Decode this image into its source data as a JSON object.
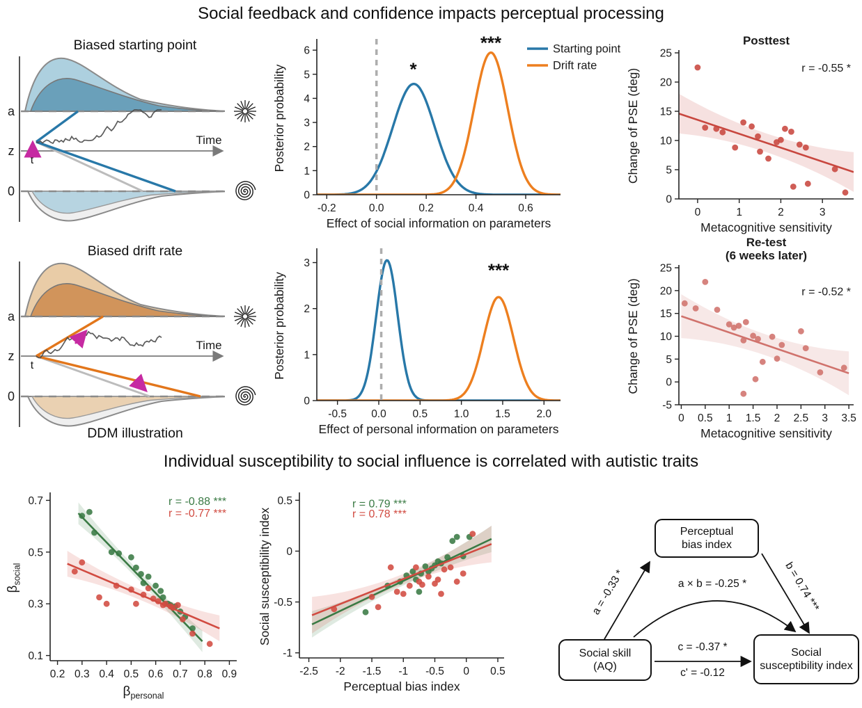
{
  "figure": {
    "title_top": "Social feedback and confidence impacts perceptual processing",
    "title_bottom": "Individual susceptibility to social influence is correlated with autistic traits"
  },
  "ddm": {
    "panel1_title": "Biased starting point",
    "panel2_title": "Biased drift rate",
    "caption": "DDM illustration",
    "labels": {
      "upper": "a",
      "mid": "z",
      "lower": "0",
      "start": "t",
      "time": "Time"
    },
    "colors": {
      "panel1_accent": "#2878a8",
      "panel1_fill_light": "#a9cddd",
      "panel1_fill_dark": "#5e98b4",
      "panel2_accent": "#e2761b",
      "panel2_fill_light": "#e8c9a2",
      "panel2_fill_dark": "#cd8a4e",
      "arrow": "#c62aa2",
      "gray": "#8a8a8a"
    }
  },
  "mediation": {
    "node_top": [
      "Perceptual",
      "bias index"
    ],
    "node_left": [
      "Social skill",
      "(AQ)"
    ],
    "node_right": [
      "Social",
      "susceptibility index"
    ],
    "path_a": "a = -0.33 *",
    "path_b": "b = 0.74 ***",
    "path_ab": "a × b = -0.25 *",
    "path_c": "c = -0.37 *",
    "path_cprime": "c' = -0.12"
  },
  "chart_data": [
    {
      "id": "posterior-social",
      "type": "line",
      "xlabel": "Effect of social information on parameters",
      "ylabel": "Posterior probability",
      "xlim": [
        -0.24,
        0.74
      ],
      "ylim": [
        0,
        6.35
      ],
      "xticks": [
        {
          "v": -0.2,
          "l": "-0.2"
        },
        {
          "v": 0,
          "l": "0.0"
        },
        {
          "v": 0.2,
          "l": "0.2"
        },
        {
          "v": 0.4,
          "l": "0.4"
        },
        {
          "v": 0.6,
          "l": "0.6"
        }
      ],
      "yticks": [
        0,
        1,
        2,
        3,
        4,
        5,
        6
      ],
      "vline": 0,
      "series": [
        {
          "name": "Starting point",
          "color": "#2878a8",
          "mean": 0.15,
          "sd": 0.085,
          "peak": 4.6
        },
        {
          "name": "Drift rate",
          "color": "#ed7f1f",
          "mean": 0.46,
          "sd": 0.068,
          "peak": 5.9
        }
      ],
      "annotations": [
        {
          "x": 0.148,
          "y": 4.95,
          "text": "*",
          "size": 26,
          "weight": "bold"
        },
        {
          "x": 0.46,
          "y": 6.05,
          "text": "***",
          "size": 26,
          "weight": "bold"
        }
      ]
    },
    {
      "id": "posterior-personal",
      "type": "line",
      "xlabel": "Effect of personal information on parameters",
      "ylabel": "Posterior probability",
      "xlim": [
        -0.75,
        2.2
      ],
      "ylim": [
        0,
        3.25
      ],
      "xticks": [
        {
          "v": -0.5,
          "l": "-0.5"
        },
        {
          "v": 0,
          "l": "0.0"
        },
        {
          "v": 0.5,
          "l": "0.5"
        },
        {
          "v": 1,
          "l": "1.0"
        },
        {
          "v": 1.5,
          "l": "1.5"
        },
        {
          "v": 2,
          "l": "2.0"
        }
      ],
      "yticks": [
        0,
        1,
        2,
        3
      ],
      "vline": 0.03,
      "series": [
        {
          "name": "Starting point",
          "color": "#2878a8",
          "mean": 0.1,
          "sd": 0.13,
          "peak": 3.05
        },
        {
          "name": "Drift rate",
          "color": "#ed7f1f",
          "mean": 1.45,
          "sd": 0.18,
          "peak": 2.25
        }
      ],
      "annotations": [
        {
          "x": 1.45,
          "y": 2.7,
          "text": "***",
          "size": 26,
          "weight": "bold"
        }
      ]
    },
    {
      "id": "posttest",
      "type": "scatter",
      "title": [
        "Posttest"
      ],
      "r_text": "r = -0.55 *",
      "xlabel": "Metacognitive sensitivity",
      "ylabel": "Change of PSE (deg)",
      "xlim": [
        -0.45,
        3.75
      ],
      "ylim": [
        0,
        25
      ],
      "xticks": [
        0,
        1,
        2,
        3
      ],
      "yticks": [
        0,
        5,
        10,
        15,
        20,
        25
      ],
      "series": [
        {
          "name": "participants",
          "color": "#c8473f",
          "points": [
            [
              0.0,
              22.5
            ],
            [
              0.18,
              12.2
            ],
            [
              0.45,
              12.0
            ],
            [
              0.6,
              11.4
            ],
            [
              0.9,
              8.8
            ],
            [
              1.1,
              13.1
            ],
            [
              1.3,
              12.4
            ],
            [
              1.45,
              10.7
            ],
            [
              1.5,
              8.1
            ],
            [
              1.7,
              6.9
            ],
            [
              1.9,
              9.7
            ],
            [
              2.0,
              10.1
            ],
            [
              2.1,
              12.0
            ],
            [
              2.25,
              11.5
            ],
            [
              2.3,
              2.1
            ],
            [
              2.45,
              9.3
            ],
            [
              2.6,
              8.8
            ],
            [
              2.65,
              2.6
            ],
            [
              3.3,
              5.1
            ],
            [
              3.55,
              1.1
            ]
          ],
          "line": [
            [
              -0.45,
              14.6
            ],
            [
              3.75,
              4.6
            ]
          ],
          "band": {
            "mid": 1.6,
            "end": 3.4
          }
        }
      ]
    },
    {
      "id": "retest",
      "type": "scatter",
      "title": [
        "Re-test",
        "(6 weeks later)"
      ],
      "r_text": "r = -0.52 *",
      "xlabel": "Metacognitive sensitivity",
      "ylabel": "Change of PSE (deg)",
      "xlim": [
        -0.05,
        3.6
      ],
      "ylim": [
        -5,
        25
      ],
      "xticks": [
        0,
        0.5,
        1,
        1.5,
        2,
        2.5,
        3,
        3.5
      ],
      "yticks": [
        -5,
        0,
        5,
        10,
        15,
        20,
        25
      ],
      "series": [
        {
          "name": "participants",
          "color": "#d0726c",
          "points": [
            [
              0.07,
              17.2
            ],
            [
              0.3,
              16.1
            ],
            [
              0.5,
              21.9
            ],
            [
              0.75,
              15.8
            ],
            [
              1.0,
              12.6
            ],
            [
              1.1,
              11.9
            ],
            [
              1.2,
              12.3
            ],
            [
              1.3,
              9.1
            ],
            [
              1.3,
              -2.6
            ],
            [
              1.35,
              13.1
            ],
            [
              1.5,
              10.1
            ],
            [
              1.55,
              0.6
            ],
            [
              1.6,
              9.4
            ],
            [
              1.7,
              4.4
            ],
            [
              1.9,
              9.9
            ],
            [
              2.0,
              5.1
            ],
            [
              2.1,
              8.1
            ],
            [
              2.5,
              11.1
            ],
            [
              2.6,
              7.4
            ],
            [
              2.9,
              2.1
            ],
            [
              3.4,
              3.1
            ]
          ],
          "line": [
            [
              0,
              14.4
            ],
            [
              3.5,
              1.9
            ]
          ],
          "band": {
            "mid": 2.3,
            "end": 4.8
          }
        }
      ]
    },
    {
      "id": "beta",
      "type": "scatter",
      "xlabel": {
        "main": "β",
        "sub": "personal"
      },
      "ylabel": {
        "main": "β",
        "sub": "social"
      },
      "xlim": [
        0.17,
        0.93
      ],
      "ylim": [
        0.08,
        0.72
      ],
      "xticks": [
        0.2,
        0.3,
        0.4,
        0.5,
        0.6,
        0.7,
        0.8,
        0.9
      ],
      "yticks": [
        0.1,
        0.3,
        0.5,
        0.7
      ],
      "series": [
        {
          "name": "social condition",
          "color": "#3a7a44",
          "points": [
            [
              0.3,
              0.64
            ],
            [
              0.33,
              0.655
            ],
            [
              0.35,
              0.575
            ],
            [
              0.42,
              0.5
            ],
            [
              0.45,
              0.495
            ],
            [
              0.5,
              0.48
            ],
            [
              0.52,
              0.44
            ],
            [
              0.54,
              0.415
            ],
            [
              0.55,
              0.38
            ],
            [
              0.57,
              0.405
            ],
            [
              0.6,
              0.37
            ],
            [
              0.62,
              0.35
            ],
            [
              0.63,
              0.325
            ],
            [
              0.65,
              0.3
            ],
            [
              0.66,
              0.295
            ],
            [
              0.68,
              0.29
            ],
            [
              0.7,
              0.27
            ],
            [
              0.72,
              0.25
            ],
            [
              0.75,
              0.205
            ]
          ],
          "line": [
            [
              0.285,
              0.65
            ],
            [
              0.79,
              0.155
            ]
          ],
          "band": {
            "mid": 0.018,
            "end": 0.042
          }
        },
        {
          "name": "personal condition",
          "color": "#d14b41",
          "points": [
            [
              0.27,
              0.425
            ],
            [
              0.3,
              0.46
            ],
            [
              0.37,
              0.325
            ],
            [
              0.4,
              0.3
            ],
            [
              0.44,
              0.37
            ],
            [
              0.5,
              0.355
            ],
            [
              0.52,
              0.3
            ],
            [
              0.55,
              0.335
            ],
            [
              0.57,
              0.36
            ],
            [
              0.59,
              0.32
            ],
            [
              0.61,
              0.31
            ],
            [
              0.63,
              0.295
            ],
            [
              0.64,
              0.3
            ],
            [
              0.66,
              0.29
            ],
            [
              0.67,
              0.285
            ],
            [
              0.69,
              0.295
            ],
            [
              0.71,
              0.24
            ],
            [
              0.75,
              0.185
            ],
            [
              0.82,
              0.145
            ]
          ],
          "line": [
            [
              0.24,
              0.455
            ],
            [
              0.86,
              0.205
            ]
          ],
          "band": {
            "mid": 0.02,
            "end": 0.05
          }
        }
      ],
      "annotations": [
        {
          "x": 0.77,
          "y": 0.683,
          "text": "r = -0.88 ***",
          "color": "#3a7a44",
          "size": 16
        },
        {
          "x": 0.77,
          "y": 0.637,
          "text": "r = -0.77 ***",
          "color": "#d14b41",
          "size": 16
        }
      ]
    },
    {
      "id": "susceptibility",
      "type": "scatter",
      "xlabel": "Perceptual bias index",
      "ylabel": "Social susceptibility index",
      "xlim": [
        -2.65,
        0.6
      ],
      "ylim": [
        -1.05,
        0.55
      ],
      "xticks": [
        -2.5,
        -2,
        -1.5,
        -1,
        -0.5,
        0,
        0.5
      ],
      "yticks": [
        -1,
        -0.5,
        0,
        0.5
      ],
      "series": [
        {
          "name": "social condition",
          "color": "#3a7a44",
          "points": [
            [
              -1.6,
              -0.6
            ],
            [
              -1.25,
              -0.34
            ],
            [
              -1.05,
              -0.3
            ],
            [
              -0.95,
              -0.24
            ],
            [
              -0.85,
              -0.2
            ],
            [
              -0.8,
              -0.28
            ],
            [
              -0.75,
              -0.4
            ],
            [
              -0.72,
              -0.22
            ],
            [
              -0.65,
              -0.15
            ],
            [
              -0.6,
              -0.2
            ],
            [
              -0.55,
              -0.17
            ],
            [
              -0.5,
              -0.14
            ],
            [
              -0.45,
              -0.1
            ],
            [
              -0.4,
              -0.12
            ],
            [
              -0.3,
              -0.06
            ],
            [
              -0.22,
              0.1
            ],
            [
              -0.15,
              0.14
            ],
            [
              -0.05,
              -0.05
            ],
            [
              0.05,
              0.14
            ]
          ],
          "line": [
            [
              -2.45,
              -0.72
            ],
            [
              0.4,
              0.12
            ]
          ],
          "band": {
            "mid": 0.045,
            "end": 0.13
          }
        },
        {
          "name": "personal condition",
          "color": "#d14b41",
          "points": [
            [
              -2.1,
              -0.57
            ],
            [
              -1.5,
              -0.45
            ],
            [
              -1.4,
              -0.55
            ],
            [
              -1.2,
              -0.16
            ],
            [
              -1.1,
              -0.4
            ],
            [
              -1.0,
              -0.42
            ],
            [
              -0.9,
              -0.34
            ],
            [
              -0.8,
              -0.16
            ],
            [
              -0.75,
              -0.3
            ],
            [
              -0.7,
              -0.33
            ],
            [
              -0.6,
              -0.25
            ],
            [
              -0.5,
              -0.32
            ],
            [
              -0.45,
              -0.28
            ],
            [
              -0.4,
              -0.42
            ],
            [
              -0.35,
              -0.18
            ],
            [
              -0.25,
              -0.16
            ],
            [
              -0.15,
              -0.3
            ],
            [
              -0.05,
              -0.22
            ],
            [
              0.1,
              0.17
            ]
          ],
          "line": [
            [
              -2.45,
              -0.63
            ],
            [
              0.4,
              0.07
            ]
          ],
          "band": {
            "mid": 0.05,
            "end": 0.18
          }
        }
      ],
      "annotations": [
        {
          "x": -1.38,
          "y": 0.43,
          "text": "r = 0.79 ***",
          "color": "#3a7a44",
          "size": 16
        },
        {
          "x": -1.38,
          "y": 0.33,
          "text": "r = 0.78 ***",
          "color": "#d14b41",
          "size": 16
        }
      ]
    }
  ]
}
